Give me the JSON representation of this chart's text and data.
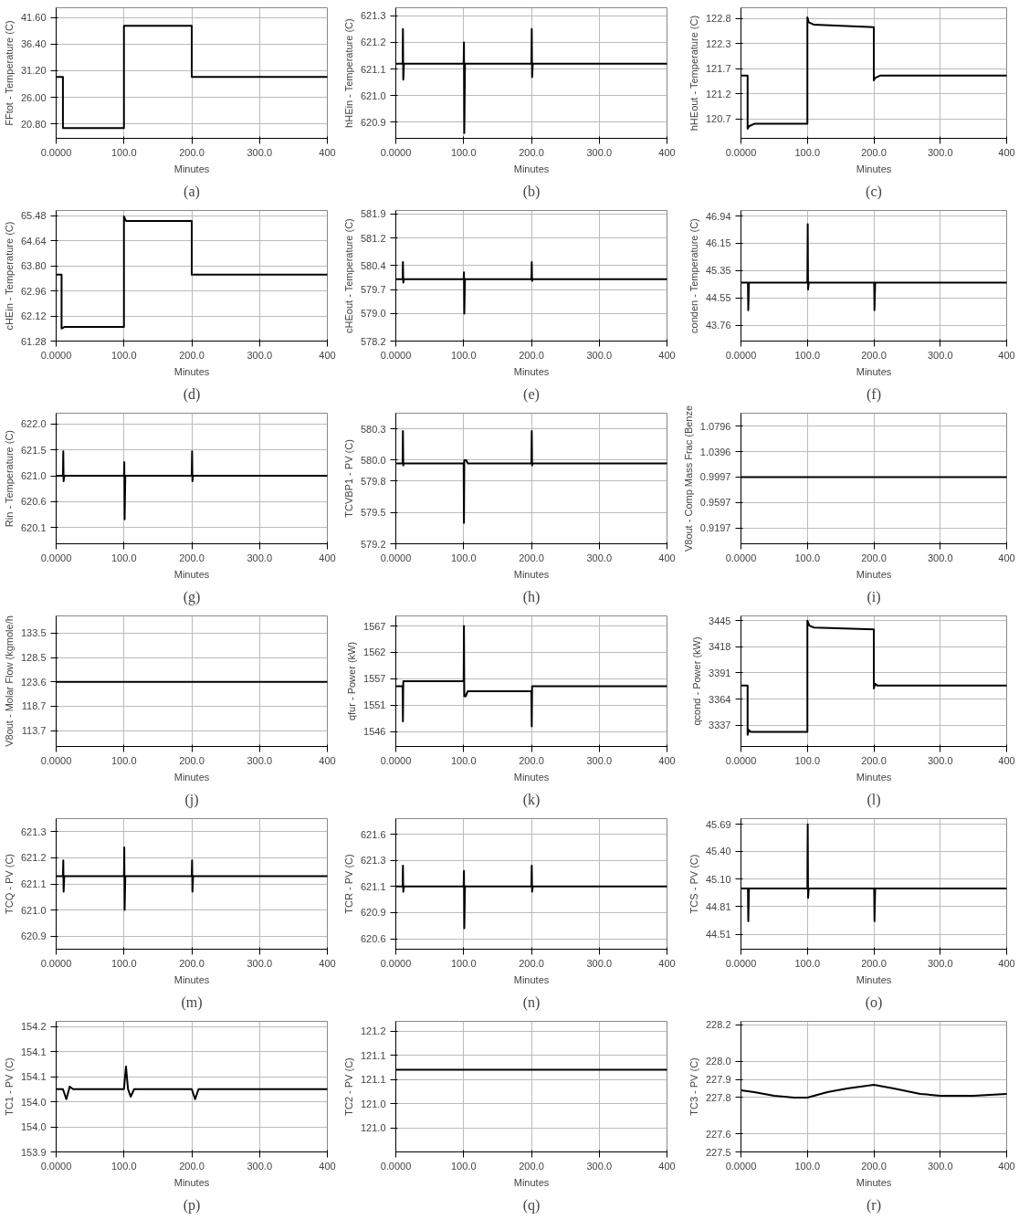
{
  "chart_data": [
    {
      "type": "line",
      "title": "(a)",
      "xlabel": "Minutes",
      "ylabel": "FFtot - Temperature (C)",
      "x": [
        0,
        10,
        10,
        100,
        100,
        200,
        200,
        400
      ],
      "series": [
        {
          "color": "#000000",
          "values": [
            30,
            30,
            20,
            20,
            40,
            40,
            30,
            30
          ]
        }
      ],
      "xlim": [
        0,
        400
      ],
      "xticks": [
        {
          "value": 0,
          "label": "0.0000"
        },
        {
          "value": 100,
          "label": "100.0"
        },
        {
          "value": 200,
          "label": "200.0"
        },
        {
          "value": 300,
          "label": "300.0"
        },
        400
      ],
      "ylim": [
        18,
        43.5
      ],
      "yticks": [
        {
          "value": 20.8,
          "label": "20.80"
        },
        {
          "value": 26,
          "label": "26.00"
        },
        {
          "value": 31.2,
          "label": "31.20"
        },
        {
          "value": 36.4,
          "label": "36.40"
        },
        {
          "value": 41.6,
          "label": "41.60"
        }
      ],
      "grid": true
    },
    {
      "type": "line",
      "title": "(b)",
      "xlabel": "Minutes",
      "ylabel": "hHEin - Temperature (C)",
      "x": [
        0,
        10,
        10.5,
        11,
        12,
        100,
        100.5,
        101,
        102,
        200,
        200.5,
        201,
        202,
        400
      ],
      "series": [
        {
          "color": "#000000",
          "values": [
            621.12,
            621.12,
            621.25,
            621.06,
            621.12,
            621.12,
            621.2,
            620.86,
            621.12,
            621.12,
            621.25,
            621.07,
            621.12,
            621.12
          ]
        }
      ],
      "xlim": [
        0,
        400
      ],
      "xticks": [
        {
          "value": 0,
          "label": "0.0000"
        },
        {
          "value": 100,
          "label": "100.0"
        },
        {
          "value": 200,
          "label": "200.0"
        },
        {
          "value": 300,
          "label": "300.0"
        },
        400
      ],
      "ylim": [
        620.84,
        621.33
      ],
      "yticks": [
        620.9,
        {
          "value": 621.0,
          "label": "621.0"
        },
        621.1,
        621.2,
        621.3
      ],
      "grid": true
    },
    {
      "type": "line",
      "title": "(c)",
      "xlabel": "Minutes",
      "ylabel": "hHEout - Temperature (C)",
      "x": [
        0,
        10,
        10,
        12,
        20,
        100,
        100,
        102,
        110,
        200,
        200,
        202,
        210,
        400
      ],
      "series": [
        {
          "color": "#000000",
          "values": [
            121.6,
            121.6,
            120.5,
            120.55,
            120.6,
            120.6,
            122.8,
            122.7,
            122.65,
            122.6,
            121.5,
            121.55,
            121.6,
            121.6
          ]
        }
      ],
      "xlim": [
        0,
        400
      ],
      "xticks": [
        {
          "value": 0,
          "label": "0.0000"
        },
        {
          "value": 100,
          "label": "100.0"
        },
        {
          "value": 200,
          "label": "200.0"
        },
        {
          "value": 300,
          "label": "300.0"
        },
        400
      ],
      "ylim": [
        120.3,
        123.0
      ],
      "yticks": [
        {
          "value": 120.7,
          "label": "120.7"
        },
        {
          "value": 121.22,
          "label": "121.2"
        },
        {
          "value": 121.74,
          "label": "121.7"
        },
        {
          "value": 122.26,
          "label": "122.3"
        },
        {
          "value": 122.78,
          "label": "122.8"
        }
      ],
      "grid": true
    },
    {
      "type": "line",
      "title": "(d)",
      "xlabel": "Minutes",
      "ylabel": "cHEin - Temperature (C)",
      "x": [
        0,
        8,
        8,
        12,
        100,
        100,
        103,
        200,
        200,
        400
      ],
      "series": [
        {
          "color": "#000000",
          "values": [
            63.5,
            63.5,
            61.7,
            61.75,
            61.75,
            65.45,
            65.3,
            65.3,
            63.5,
            63.5
          ]
        }
      ],
      "xlim": [
        0,
        400
      ],
      "xticks": [
        {
          "value": 0,
          "label": "0.0000"
        },
        {
          "value": 100,
          "label": "100.0"
        },
        {
          "value": 200,
          "label": "200.0"
        },
        {
          "value": 300,
          "label": "300.0"
        },
        400
      ],
      "ylim": [
        61.28,
        65.65
      ],
      "yticks": [
        {
          "value": 61.28,
          "label": "61.28"
        },
        {
          "value": 62.12,
          "label": "62.12"
        },
        {
          "value": 62.96,
          "label": "62.96"
        },
        {
          "value": 63.8,
          "label": "63.80"
        },
        {
          "value": 64.64,
          "label": "64.64"
        },
        {
          "value": 65.48,
          "label": "65.48"
        }
      ],
      "grid": true
    },
    {
      "type": "line",
      "title": "(e)",
      "xlabel": "Minutes",
      "ylabel": "cHEout - Temperature (C)",
      "x": [
        0,
        10,
        10.5,
        11,
        12,
        100,
        100.5,
        101,
        102,
        200,
        200.5,
        201,
        202,
        400
      ],
      "series": [
        {
          "color": "#000000",
          "values": [
            580.0,
            580.0,
            580.5,
            579.9,
            580.0,
            580.0,
            580.2,
            579.0,
            580.0,
            580.0,
            580.5,
            579.95,
            580.0,
            580.0
          ]
        }
      ],
      "xlim": [
        0,
        400
      ],
      "xticks": [
        {
          "value": 0,
          "label": "0.0000"
        },
        {
          "value": 100,
          "label": "100.0"
        },
        {
          "value": 200,
          "label": "200.0"
        },
        {
          "value": 300,
          "label": "300.0"
        },
        400
      ],
      "ylim": [
        578.2,
        582.0
      ],
      "yticks": [
        {
          "value": 578.2,
          "label": "578.2"
        },
        {
          "value": 579.0,
          "label": "579.0"
        },
        {
          "value": 579.7,
          "label": "579.7"
        },
        {
          "value": 580.4,
          "label": "580.4"
        },
        {
          "value": 581.2,
          "label": "581.2"
        },
        {
          "value": 581.9,
          "label": "581.9"
        }
      ],
      "grid": true
    },
    {
      "type": "line",
      "title": "(f)",
      "xlabel": "Minutes",
      "ylabel": "conden - Temperature (C)",
      "x": [
        0,
        10,
        10.5,
        11,
        12,
        100,
        100.5,
        101,
        102,
        200,
        200.5,
        201,
        202,
        400
      ],
      "series": [
        {
          "color": "#000000",
          "values": [
            45.0,
            45.0,
            45.0,
            44.2,
            45.0,
            45.0,
            46.7,
            44.8,
            45.0,
            45.0,
            45.0,
            44.2,
            45.0,
            45.0
          ]
        }
      ],
      "xlim": [
        0,
        400
      ],
      "xticks": [
        {
          "value": 0,
          "label": "0.0000"
        },
        {
          "value": 100,
          "label": "100.0"
        },
        {
          "value": 200,
          "label": "200.0"
        },
        {
          "value": 300,
          "label": "300.0"
        },
        400
      ],
      "ylim": [
        43.3,
        47.1
      ],
      "yticks": [
        {
          "value": 43.76,
          "label": "43.76"
        },
        {
          "value": 44.555,
          "label": "44.55"
        },
        {
          "value": 45.35,
          "label": "45.35"
        },
        {
          "value": 46.145,
          "label": "46.15"
        },
        {
          "value": 46.94,
          "label": "46.94"
        }
      ],
      "grid": true
    },
    {
      "type": "line",
      "title": "(g)",
      "xlabel": "Minutes",
      "ylabel": "Rin - Temperature (C)",
      "x": [
        0,
        10,
        10.5,
        11,
        12,
        100,
        100.5,
        101,
        102,
        200,
        200.5,
        201,
        202,
        400
      ],
      "series": [
        {
          "color": "#000000",
          "values": [
            621.05,
            621.05,
            621.5,
            620.95,
            621.05,
            621.05,
            621.3,
            620.25,
            621.05,
            621.05,
            621.5,
            620.95,
            621.05,
            621.05
          ]
        }
      ],
      "xlim": [
        0,
        400
      ],
      "xticks": [
        {
          "value": 0,
          "label": "0.0000"
        },
        {
          "value": 100,
          "label": "100.0"
        },
        {
          "value": 200,
          "label": "200.0"
        },
        {
          "value": 300,
          "label": "300.0"
        },
        400
      ],
      "ylim": [
        619.8,
        622.2
      ],
      "yticks": [
        {
          "value": 620.1,
          "label": "620.1"
        },
        {
          "value": 620.575,
          "label": "620.6"
        },
        {
          "value": 621.05,
          "label": "621.0"
        },
        {
          "value": 621.525,
          "label": "621.5"
        },
        {
          "value": 622.0,
          "label": "622.0"
        }
      ],
      "grid": true
    },
    {
      "type": "line",
      "title": "(h)",
      "xlabel": "Minutes",
      "ylabel": "TCVBP1 - PV (C)",
      "x": [
        0,
        10,
        10.5,
        11,
        12,
        100,
        100.5,
        101,
        104,
        106,
        200,
        200.5,
        201,
        202,
        400
      ],
      "series": [
        {
          "color": "#000000",
          "values": [
            579.97,
            579.97,
            580.28,
            579.95,
            579.97,
            579.97,
            579.4,
            580.0,
            580.0,
            579.97,
            579.97,
            580.28,
            579.95,
            579.97,
            579.97
          ]
        }
      ],
      "xlim": [
        0,
        400
      ],
      "xticks": [
        {
          "value": 0,
          "label": "0.0000"
        },
        {
          "value": 100,
          "label": "100.0"
        },
        {
          "value": 200,
          "label": "200.0"
        },
        {
          "value": 300,
          "label": "300.0"
        },
        400
      ],
      "ylim": [
        579.2,
        580.45
      ],
      "yticks": [
        {
          "value": 579.2,
          "label": "579.2"
        },
        {
          "value": 579.5,
          "label": "579.5"
        },
        {
          "value": 579.8,
          "label": "579.8"
        },
        {
          "value": 580.0,
          "label": "580.0"
        },
        {
          "value": 580.3,
          "label": "580.3"
        }
      ],
      "grid": true
    },
    {
      "type": "line",
      "title": "(i)",
      "xlabel": "Minutes",
      "ylabel": "V8out - Comp Mass Frac (Benze",
      "x": [
        0,
        400
      ],
      "series": [
        {
          "color": "#000000",
          "values": [
            0.9997,
            0.9997
          ]
        }
      ],
      "xlim": [
        0,
        400
      ],
      "xticks": [
        {
          "value": 0,
          "label": "0.0000"
        },
        {
          "value": 100,
          "label": "100.0"
        },
        {
          "value": 200,
          "label": "200.0"
        },
        {
          "value": 300,
          "label": "300.0"
        },
        400
      ],
      "ylim": [
        0.895,
        1.1
      ],
      "yticks": [
        0.9197,
        0.9597,
        0.9997,
        1.0396,
        1.0796
      ],
      "grid": true
    },
    {
      "type": "line",
      "title": "(j)",
      "xlabel": "Minutes",
      "ylabel": "V8out - Molar Flow (kgmole/h",
      "x": [
        0,
        400
      ],
      "series": [
        {
          "color": "#000000",
          "values": [
            123.6,
            123.6
          ]
        }
      ],
      "xlim": [
        0,
        400
      ],
      "xticks": [
        {
          "value": 0,
          "label": "0.0000"
        },
        {
          "value": 100,
          "label": "100.0"
        },
        {
          "value": 200,
          "label": "200.0"
        },
        {
          "value": 300,
          "label": "300.0"
        },
        400
      ],
      "ylim": [
        110.5,
        137
      ],
      "yticks": [
        113.7,
        118.7,
        123.6,
        128.5,
        133.5
      ],
      "grid": true
    },
    {
      "type": "line",
      "title": "(k)",
      "xlabel": "Minutes",
      "ylabel": "qfur - Power (kW)",
      "x": [
        0,
        10,
        10.5,
        11,
        100,
        100.5,
        101,
        103,
        106,
        200,
        200.5,
        201,
        205,
        400
      ],
      "series": [
        {
          "color": "#000000",
          "values": [
            1555,
            1555,
            1548,
            1556,
            1556,
            1567,
            1553,
            1553,
            1554,
            1554,
            1547,
            1555,
            1555,
            1555
          ]
        }
      ],
      "xlim": [
        0,
        400
      ],
      "xticks": [
        {
          "value": 0,
          "label": "0.0000"
        },
        {
          "value": 100,
          "label": "100.0"
        },
        {
          "value": 200,
          "label": "200.0"
        },
        {
          "value": 300,
          "label": "300.0"
        },
        400
      ],
      "ylim": [
        1543,
        1569
      ],
      "yticks": [
        {
          "value": 1546,
          "label": "1546"
        },
        {
          "value": 1551.25,
          "label": "1551"
        },
        {
          "value": 1556.5,
          "label": "1557"
        },
        {
          "value": 1561.75,
          "label": "1562"
        },
        {
          "value": 1567,
          "label": "1567"
        }
      ],
      "grid": true
    },
    {
      "type": "line",
      "title": "(l)",
      "xlabel": "Minutes",
      "ylabel": "qcond - Power (kW)",
      "x": [
        0,
        10,
        10,
        12,
        15,
        100,
        100,
        103,
        110,
        200,
        200,
        202,
        205,
        400
      ],
      "series": [
        {
          "color": "#000000",
          "values": [
            3378,
            3378,
            3327,
            3332,
            3330,
            3330,
            3445,
            3440,
            3438,
            3436,
            3375,
            3380,
            3378,
            3378
          ]
        }
      ],
      "xlim": [
        0,
        400
      ],
      "xticks": [
        {
          "value": 0,
          "label": "0.0000"
        },
        {
          "value": 100,
          "label": "100.0"
        },
        {
          "value": 200,
          "label": "200.0"
        },
        {
          "value": 300,
          "label": "300.0"
        },
        400
      ],
      "ylim": [
        3315,
        3450
      ],
      "yticks": [
        3337,
        3364,
        3391,
        3418,
        3445
      ],
      "grid": true
    },
    {
      "type": "line",
      "title": "(m)",
      "xlabel": "Minutes",
      "ylabel": "TCQ - PV (C)",
      "x": [
        0,
        10,
        10.5,
        11,
        12,
        100,
        100.5,
        101,
        102,
        200,
        200.5,
        201,
        202,
        400
      ],
      "series": [
        {
          "color": "#000000",
          "values": [
            621.13,
            621.13,
            621.19,
            621.07,
            621.13,
            621.13,
            621.24,
            621.0,
            621.13,
            621.13,
            621.19,
            621.07,
            621.13,
            621.13
          ]
        }
      ],
      "xlim": [
        0,
        400
      ],
      "xticks": [
        {
          "value": 0,
          "label": "0.0000"
        },
        {
          "value": 100,
          "label": "100.0"
        },
        {
          "value": 200,
          "label": "200.0"
        },
        {
          "value": 300,
          "label": "300.0"
        },
        400
      ],
      "ylim": [
        620.85,
        621.35
      ],
      "yticks": [
        620.9,
        {
          "value": 621.0,
          "label": "621.0"
        },
        621.1,
        621.2,
        621.3
      ],
      "grid": true
    },
    {
      "type": "line",
      "title": "(n)",
      "xlabel": "Minutes",
      "ylabel": "TCR - PV (C)",
      "x": [
        0,
        10,
        10.5,
        11,
        12,
        100,
        100.5,
        101,
        102,
        200,
        200.5,
        201,
        202,
        400
      ],
      "series": [
        {
          "color": "#000000",
          "values": [
            621.1,
            621.1,
            621.3,
            621.05,
            621.1,
            621.1,
            621.25,
            620.7,
            621.1,
            621.1,
            621.3,
            621.05,
            621.1,
            621.1
          ]
        }
      ],
      "xlim": [
        0,
        400
      ],
      "xticks": [
        {
          "value": 0,
          "label": "0.0000"
        },
        {
          "value": 100,
          "label": "100.0"
        },
        {
          "value": 200,
          "label": "200.0"
        },
        {
          "value": 300,
          "label": "300.0"
        },
        400
      ],
      "ylim": [
        620.5,
        621.75
      ],
      "yticks": [
        {
          "value": 620.6,
          "label": "620.6"
        },
        {
          "value": 620.85,
          "label": "620.9"
        },
        {
          "value": 621.1,
          "label": "621.1"
        },
        {
          "value": 621.35,
          "label": "621.3"
        },
        {
          "value": 621.6,
          "label": "621.6"
        }
      ],
      "grid": true
    },
    {
      "type": "line",
      "title": "(o)",
      "xlabel": "Minutes",
      "ylabel": "TCS - PV (C)",
      "x": [
        0,
        10,
        10.5,
        11,
        12,
        100,
        100.5,
        101,
        102,
        200,
        200.5,
        201,
        202,
        400
      ],
      "series": [
        {
          "color": "#000000",
          "values": [
            45.0,
            45.0,
            45.0,
            44.65,
            45.0,
            45.0,
            45.69,
            44.9,
            45.0,
            45.0,
            45.0,
            44.65,
            45.0,
            45.0
          ]
        }
      ],
      "xlim": [
        0,
        400
      ],
      "xticks": [
        {
          "value": 0,
          "label": "0.0000"
        },
        {
          "value": 100,
          "label": "100.0"
        },
        {
          "value": 200,
          "label": "200.0"
        },
        {
          "value": 300,
          "label": "300.0"
        },
        400
      ],
      "ylim": [
        44.35,
        45.75
      ],
      "yticks": [
        {
          "value": 44.51,
          "label": "44.51"
        },
        {
          "value": 44.81,
          "label": "44.81"
        },
        {
          "value": 45.1,
          "label": "45.10"
        },
        {
          "value": 45.4,
          "label": "45.40"
        },
        {
          "value": 45.69,
          "label": "45.69"
        }
      ],
      "grid": true
    },
    {
      "type": "line",
      "title": "(p)",
      "xlabel": "Minutes",
      "ylabel": "TC1 - PV (C)",
      "x": [
        0,
        10,
        15,
        20,
        25,
        100,
        103,
        106,
        110,
        115,
        200,
        205,
        210,
        400
      ],
      "series": [
        {
          "color": "#000000",
          "values": [
            154.065,
            154.065,
            154.045,
            154.07,
            154.065,
            154.065,
            154.11,
            154.065,
            154.05,
            154.065,
            154.065,
            154.045,
            154.065,
            154.065
          ]
        }
      ],
      "xlim": [
        0,
        400
      ],
      "xticks": [
        {
          "value": 0,
          "label": "0.0000"
        },
        {
          "value": 100,
          "label": "100.0"
        },
        {
          "value": 200,
          "label": "200.0"
        },
        {
          "value": 300,
          "label": "300.0"
        },
        400
      ],
      "ylim": [
        153.94,
        154.2
      ],
      "yticks": [
        {
          "value": 153.94,
          "label": "153.9"
        },
        {
          "value": 153.99,
          "label": "154.0"
        },
        {
          "value": 154.04,
          "label": "154.0"
        },
        {
          "value": 154.09,
          "label": "154.1"
        },
        {
          "value": 154.14,
          "label": "154.1"
        },
        {
          "value": 154.19,
          "label": "154.2"
        }
      ],
      "grid": true
    },
    {
      "type": "line",
      "title": "(q)",
      "xlabel": "Minutes",
      "ylabel": "TC2 - PV (C)",
      "x": [
        0,
        400
      ],
      "series": [
        {
          "color": "#000000",
          "values": [
            121.12,
            121.12
          ]
        }
      ],
      "xlim": [
        0,
        400
      ],
      "xticks": [
        {
          "value": 0,
          "label": "0.0000"
        },
        {
          "value": 100,
          "label": "100.0"
        },
        {
          "value": 200,
          "label": "200.0"
        },
        {
          "value": 300,
          "label": "300.0"
        },
        400
      ],
      "ylim": [
        120.95,
        121.22
      ],
      "yticks": [
        {
          "value": 121.0,
          "label": "121.0"
        },
        {
          "value": 121.05,
          "label": "121.0"
        },
        {
          "value": 121.1,
          "label": "121.1"
        },
        {
          "value": 121.15,
          "label": "121.1"
        },
        {
          "value": 121.2,
          "label": "121.2"
        }
      ],
      "grid": true
    },
    {
      "type": "line",
      "title": "(r)",
      "xlabel": "Minutes",
      "ylabel": "TC3 - PV (C)",
      "x": [
        0,
        20,
        50,
        80,
        100,
        130,
        160,
        200,
        230,
        270,
        300,
        350,
        400
      ],
      "series": [
        {
          "color": "#000000",
          "values": [
            227.84,
            227.83,
            227.81,
            227.8,
            227.8,
            227.83,
            227.85,
            227.87,
            227.85,
            227.82,
            227.81,
            227.81,
            227.82
          ]
        }
      ],
      "xlim": [
        0,
        400
      ],
      "xticks": [
        {
          "value": 0,
          "label": "0.0000"
        },
        {
          "value": 100,
          "label": "100.0"
        },
        {
          "value": 200,
          "label": "200.0"
        },
        {
          "value": 300,
          "label": "300.0"
        },
        400
      ],
      "ylim": [
        227.5,
        228.22
      ],
      "yticks": [
        {
          "value": 227.5,
          "label": "227.5"
        },
        {
          "value": 227.6,
          "label": "227.6"
        },
        {
          "value": 227.8,
          "label": "227.8"
        },
        {
          "value": 227.9,
          "label": "227.9"
        },
        {
          "value": 228.0,
          "label": "228.0"
        },
        {
          "value": 228.2,
          "label": "228.2"
        }
      ],
      "grid": true
    }
  ]
}
